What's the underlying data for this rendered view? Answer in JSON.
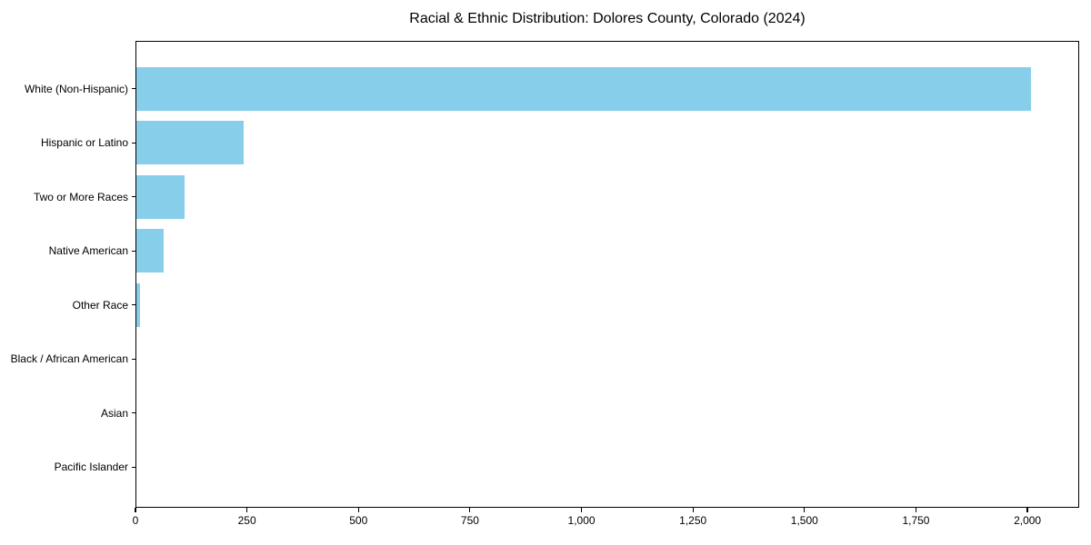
{
  "title": "Racial & Ethnic Distribution: Dolores County, Colorado (2024)",
  "chart_data": {
    "type": "bar",
    "orientation": "horizontal",
    "title": "Racial & Ethnic Distribution: Dolores County, Colorado (2024)",
    "categories": [
      "White (Non-Hispanic)",
      "Hispanic or Latino",
      "Two or More Races",
      "Native American",
      "Other Race",
      "Black / African American",
      "Asian",
      "Pacific Islander"
    ],
    "values": [
      2010,
      240,
      108,
      61,
      9,
      0,
      0,
      0
    ],
    "x_ticks": [
      0,
      250,
      500,
      750,
      1000,
      1250,
      1500,
      1750,
      2000
    ],
    "x_tick_labels": [
      "0",
      "250",
      "500",
      "750",
      "1,000",
      "1,250",
      "1,500",
      "1,750",
      "2,000"
    ],
    "xlim": [
      0,
      2116
    ],
    "xlabel": "",
    "ylabel": "",
    "grid": false,
    "legend": false,
    "bar_color": "#87CEEB",
    "background_color": "#ffffff",
    "axis_color": "#000000"
  }
}
